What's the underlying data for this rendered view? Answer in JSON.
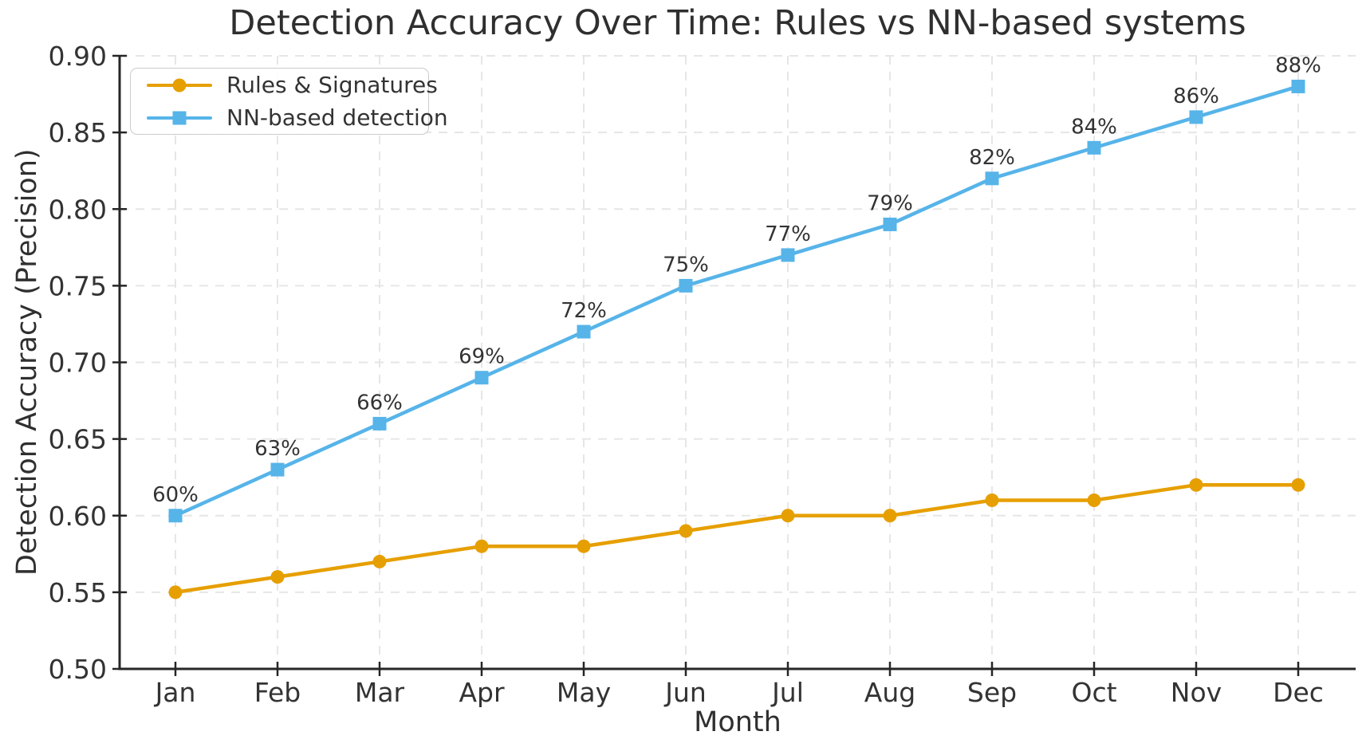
{
  "chart_data": {
    "type": "line",
    "title": "Detection Accuracy Over Time: Rules vs NN-based systems",
    "xlabel": "Month",
    "ylabel": "Detection Accuracy (Precision)",
    "categories": [
      "Jan",
      "Feb",
      "Mar",
      "Apr",
      "May",
      "Jun",
      "Jul",
      "Aug",
      "Sep",
      "Oct",
      "Nov",
      "Dec"
    ],
    "ylim": [
      0.5,
      0.9
    ],
    "ytick_labels": [
      "0.50",
      "0.55",
      "0.60",
      "0.65",
      "0.70",
      "0.75",
      "0.80",
      "0.85",
      "0.90"
    ],
    "grid": {
      "visible": true,
      "style": "dashed",
      "color": "#e6e6e6"
    },
    "legend_position": "upper-left",
    "series": [
      {
        "name": "Rules & Signatures",
        "color": "#E69F00",
        "marker": "circle",
        "values": [
          0.55,
          0.56,
          0.57,
          0.58,
          0.58,
          0.59,
          0.6,
          0.6,
          0.61,
          0.61,
          0.62,
          0.62
        ]
      },
      {
        "name": "NN-based detection",
        "color": "#56B4E9",
        "marker": "square",
        "values": [
          0.6,
          0.63,
          0.66,
          0.69,
          0.72,
          0.75,
          0.77,
          0.79,
          0.82,
          0.84,
          0.86,
          0.88
        ],
        "point_labels": [
          "60%",
          "63%",
          "66%",
          "69%",
          "72%",
          "75%",
          "77%",
          "79%",
          "82%",
          "84%",
          "86%",
          "88%"
        ]
      }
    ]
  }
}
